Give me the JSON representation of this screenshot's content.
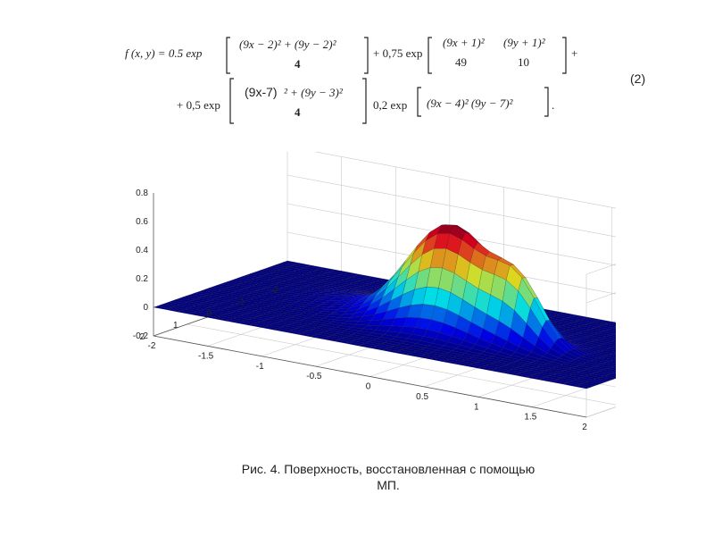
{
  "formula": {
    "lhs": "f (x, y) = 0.5 exp",
    "num1": "(9x − 2)² + (9y − 2)²",
    "den1": "4",
    "plus1": "+ 0,75 exp",
    "num2": "(9x + 1)²",
    "den2": "49",
    "num3": "(9y + 1)²",
    "den3": "10",
    "plus_end": "+",
    "lhs2": "+ 0,5 exp",
    "num4a": "(9x-7)",
    "num4b": "² + (9y − 3)²",
    "den4": "4",
    "minus2": "0,2 exp",
    "term5": "(9x − 4)²   (9y − 7)²",
    "end": "."
  },
  "equation_number": "(2)",
  "caption": {
    "line1": "Рис. 4. Поверхность, восстановленная с помощью",
    "line2": "МП."
  },
  "chart_data": {
    "type": "surface",
    "function": "0.5*exp(-((9x-2)^2+(9y-2)^2)/4) + 0.75*exp(-(9x+1)^2/49-(9y+1)^2/10) + 0.5*exp(-((9x-7)^2+(9y-3)^2)/4) - 0.2*exp(-(9x-4)^2-(9y-7)^2)",
    "xlim": [
      -2,
      2
    ],
    "ylim": [
      -2,
      2
    ],
    "zlim": [
      -0.2,
      0.8
    ],
    "x_ticks": [
      "-2",
      "-1.5",
      "-1",
      "-0.5",
      "0",
      "0.5",
      "1",
      "1.5",
      "2"
    ],
    "y_ticks": [
      "-2",
      "-1",
      "0",
      "1",
      "2"
    ],
    "z_ticks": [
      "-0.2",
      "0",
      "0.2",
      "0.4",
      "0.6",
      "0.8"
    ],
    "grid": true,
    "colormap": "jet",
    "peaks": [
      {
        "x": 0.2,
        "y": 0.2,
        "z": 0.75
      },
      {
        "x": 0.85,
        "y": 0.3,
        "z": 0.5
      }
    ],
    "colors": {
      "low": "#1e3a8c",
      "high": "#b00000",
      "grid": "#c8c8c8",
      "axis": "#555555"
    }
  }
}
